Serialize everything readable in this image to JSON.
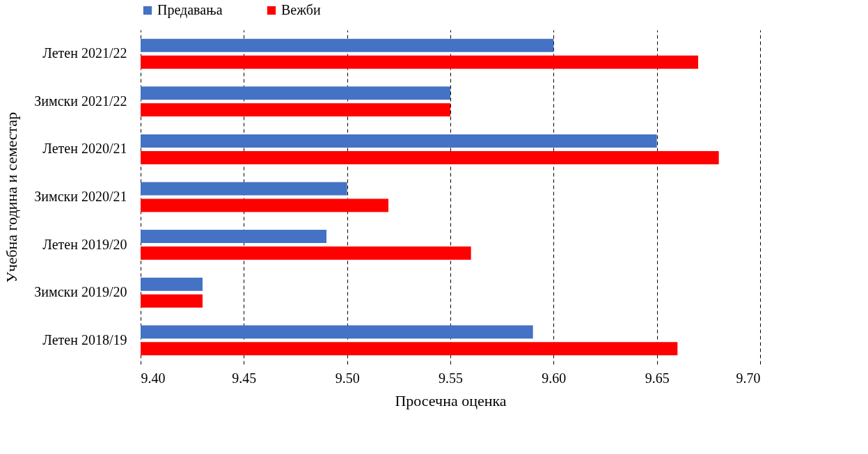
{
  "chart_data": {
    "type": "bar",
    "orientation": "horizontal",
    "xlabel": "Просечна оценка",
    "ylabel": "Учебна година и семестар",
    "categories": [
      "Летен 2021/22",
      "Зимски 2021/22",
      "Летен 2020/21",
      "Зимски 2020/21",
      "Летен 2019/20",
      "Зимски 2019/20",
      "Летен 2018/19"
    ],
    "series": [
      {
        "name": "Предавања",
        "color": "#4472c4",
        "values": [
          9.6,
          9.55,
          9.65,
          9.5,
          9.49,
          9.43,
          9.59
        ]
      },
      {
        "name": "Вежби",
        "color": "#ff0000",
        "values": [
          9.67,
          9.55,
          9.68,
          9.52,
          9.56,
          9.43,
          9.66
        ]
      }
    ],
    "xlim": [
      9.4,
      9.7
    ],
    "xticks": [
      {
        "value": 9.4,
        "label": "9.40"
      },
      {
        "value": 9.45,
        "label": "9.45"
      },
      {
        "value": 9.5,
        "label": "9.50"
      },
      {
        "value": 9.55,
        "label": "9.55"
      },
      {
        "value": 9.6,
        "label": "9.60"
      },
      {
        "value": 9.65,
        "label": "9.65"
      },
      {
        "value": 9.7,
        "label": "9.70"
      }
    ],
    "grid": "x",
    "legend": "top"
  }
}
